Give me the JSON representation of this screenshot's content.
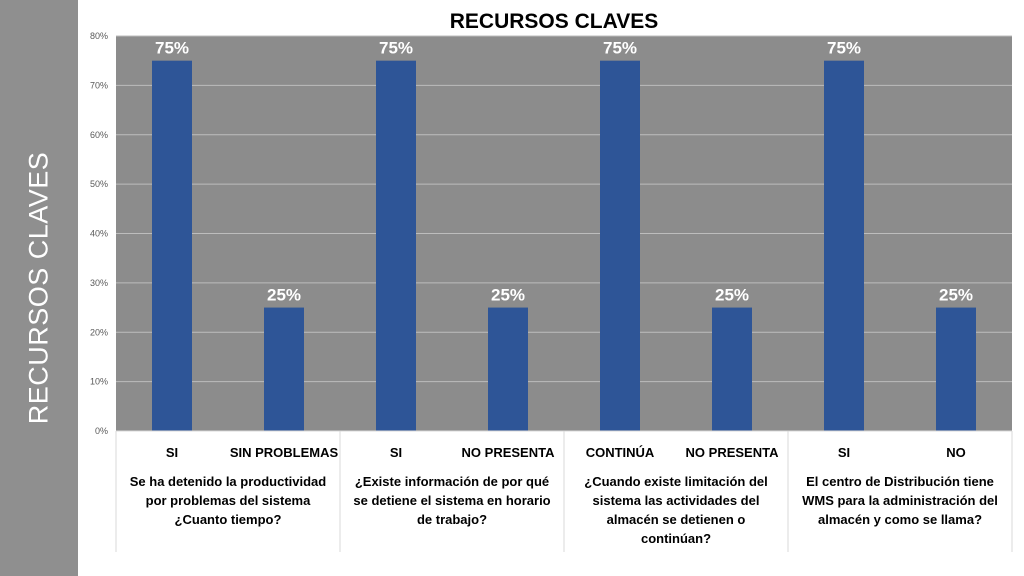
{
  "side_title": "RECURSOS CLAVES",
  "chart_data": {
    "type": "bar",
    "title": "RECURSOS CLAVES",
    "ylim": [
      0,
      80
    ],
    "y_ticks": [
      "0%",
      "10%",
      "20%",
      "30%",
      "40%",
      "50%",
      "60%",
      "70%",
      "80%"
    ],
    "grid": true,
    "legend": "none",
    "categories": [
      "SI",
      "SIN PROBLEMAS",
      "SI",
      "NO PRESENTA",
      "CONTINÚA",
      "NO PRESENTA",
      "SI",
      "NO"
    ],
    "values": [
      75,
      25,
      75,
      25,
      75,
      25,
      75,
      25
    ],
    "data_labels": [
      "75%",
      "25%",
      "75%",
      "25%",
      "75%",
      "25%",
      "75%",
      "25%"
    ],
    "groups": [
      {
        "label": [
          "Se ha detenido la productividad",
          "por problemas del sistema",
          "¿Cuanto tiempo?"
        ],
        "members": [
          0,
          1
        ]
      },
      {
        "label": [
          "¿Existe información de por qué",
          "se detiene el sistema en horario",
          "de trabajo?"
        ],
        "members": [
          2,
          3
        ]
      },
      {
        "label": [
          "¿Cuando existe limitación del",
          "sistema las actividades del",
          "almacén se detienen o",
          "continúan?"
        ],
        "members": [
          4,
          5
        ]
      },
      {
        "label": [
          "El centro de Distribución tiene",
          "WMS para la administración del",
          "almacén y como se llama?"
        ],
        "members": [
          6,
          7
        ]
      }
    ],
    "colors": {
      "bar": "#2e5597",
      "plot_bg": "#8c8c8c",
      "grid": "#bdbdbd",
      "data_label": "#ffffff",
      "text": "#000000",
      "tick_text": "#595959"
    }
  }
}
